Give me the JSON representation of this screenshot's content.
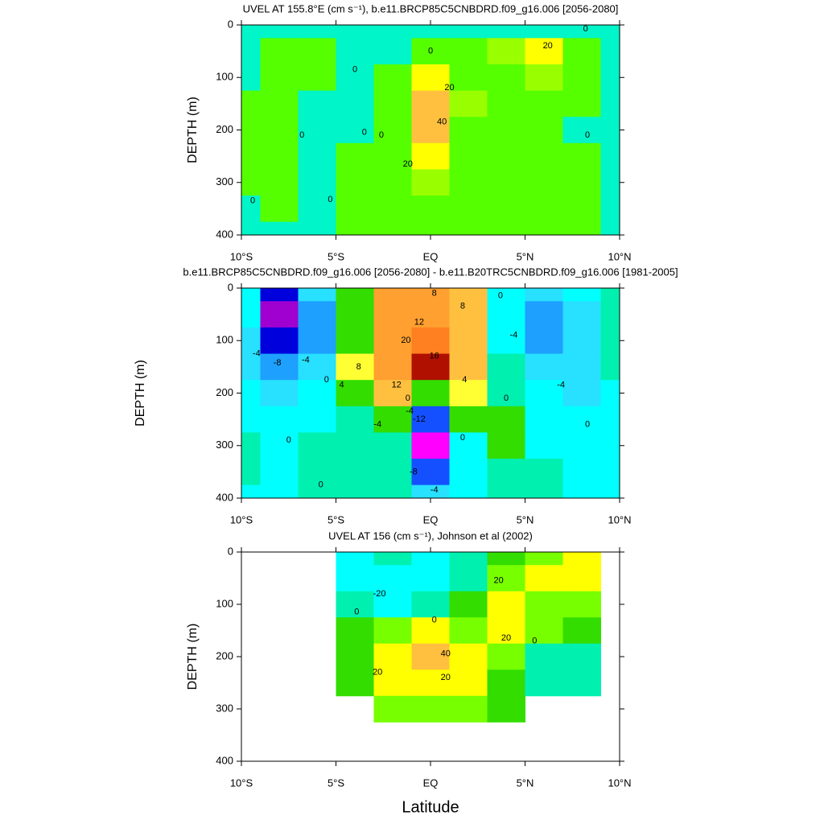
{
  "chart_data": [
    {
      "type": "contour",
      "title": "UVEL AT 155.8°E (cm s⁻¹), b.e11.BRCP85C5CNBDRD.f09_g16.006 [2056-2080]",
      "ylabel": "DEPTH (m)",
      "xlim": [
        -10,
        10
      ],
      "xticks": [
        {
          "value": -10,
          "label": "10°S"
        },
        {
          "value": -5,
          "label": "5°S"
        },
        {
          "value": 0,
          "label": "EQ"
        },
        {
          "value": 5,
          "label": "5°N"
        },
        {
          "value": 10,
          "label": "10°N"
        }
      ],
      "ylim": [
        400,
        0
      ],
      "yticks": [
        0,
        100,
        200,
        300,
        400
      ],
      "x": [
        -10,
        -8,
        -6,
        -4,
        -2,
        0,
        2,
        4,
        6,
        8,
        10
      ],
      "y": [
        0,
        50,
        100,
        150,
        200,
        250,
        300,
        350,
        400
      ],
      "levels": [
        -5,
        0,
        10,
        20,
        30,
        40
      ],
      "colors": [
        "#00ffff",
        "#00f5c8",
        "#55ff00",
        "#99ff00",
        "#ffff00",
        "#ffc040",
        "#ff9020"
      ],
      "z": [
        [
          -3,
          -3,
          -3,
          -3,
          -3,
          -3,
          -3,
          -3,
          -3,
          -3,
          -3
        ],
        [
          -2,
          5,
          5,
          -2,
          -4,
          2,
          3,
          10,
          22,
          5,
          -3
        ],
        [
          -2,
          3,
          2,
          -3,
          0,
          20,
          8,
          8,
          15,
          3,
          -3
        ],
        [
          0,
          1,
          -1,
          -2,
          5,
          38,
          10,
          6,
          6,
          1,
          -3
        ],
        [
          2,
          3,
          -2,
          -2,
          8,
          35,
          8,
          3,
          2,
          -1,
          -3
        ],
        [
          3,
          3,
          -2,
          0,
          8,
          22,
          6,
          3,
          2,
          1,
          -3
        ],
        [
          2,
          2,
          -2,
          2,
          6,
          10,
          4,
          3,
          2,
          1,
          -2
        ],
        [
          -2,
          2,
          -2,
          2,
          4,
          5,
          3,
          2,
          2,
          1,
          -2
        ],
        [
          -2,
          -2,
          -2,
          3,
          3,
          3,
          3,
          2,
          2,
          1,
          -2
        ]
      ],
      "contour_labels": [
        {
          "level": 20,
          "lat": 6.2,
          "depth": 40
        },
        {
          "level": 0,
          "lat": 8.2,
          "depth": 8
        },
        {
          "level": 0,
          "lat": 0,
          "depth": 50
        },
        {
          "level": 0,
          "lat": -4,
          "depth": 85
        },
        {
          "level": 20,
          "lat": 1,
          "depth": 120
        },
        {
          "level": 40,
          "lat": 0.6,
          "depth": 185
        },
        {
          "level": 20,
          "lat": -1.2,
          "depth": 265
        },
        {
          "level": 0,
          "lat": -2.6,
          "depth": 210
        },
        {
          "level": 0,
          "lat": -6.8,
          "depth": 210
        },
        {
          "level": 0,
          "lat": -3.5,
          "depth": 205
        },
        {
          "level": 0,
          "lat": 8.3,
          "depth": 210
        },
        {
          "level": 0,
          "lat": -9.4,
          "depth": 335
        },
        {
          "level": 0,
          "lat": -5.3,
          "depth": 333
        }
      ]
    },
    {
      "type": "contour",
      "title": "b.e11.BRCP85C5CNBDRD.f09_g16.006 [2056-2080] - b.e11.B20TRC5CNBDRD.f09_g16.006 [1981-2005]",
      "ylabel": "DEPTH (m)",
      "xlim": [
        -10,
        10
      ],
      "xticks": [
        {
          "value": -10,
          "label": "10°S"
        },
        {
          "value": -5,
          "label": "5°S"
        },
        {
          "value": 0,
          "label": "EQ"
        },
        {
          "value": 5,
          "label": "5°N"
        },
        {
          "value": 10,
          "label": "10°N"
        }
      ],
      "ylim": [
        400,
        0
      ],
      "yticks": [
        0,
        100,
        200,
        300,
        400
      ],
      "x": [
        -10,
        -8,
        -6,
        -4,
        -2,
        0,
        2,
        4,
        6,
        8,
        10
      ],
      "y": [
        0,
        50,
        100,
        150,
        200,
        250,
        300,
        350,
        400
      ],
      "levels": [
        -14,
        -12,
        -10,
        -8,
        -6,
        -4,
        -2,
        0,
        2,
        4,
        6,
        8,
        12,
        16,
        20
      ],
      "colors": [
        "#dddddd",
        "#ff00ff",
        "#a000d0",
        "#0000dd",
        "#1450ff",
        "#1ea0ff",
        "#28e0ff",
        "#00ffff",
        "#00f0b0",
        "#33dd00",
        "#ffff33",
        "#ffc040",
        "#ffa030",
        "#ff8020",
        "#e03000",
        "#b01000"
      ],
      "z": [
        [
          -2,
          -10,
          -4,
          2,
          8,
          8,
          6,
          -1,
          -4,
          -2,
          0
        ],
        [
          -2,
          -12,
          -6,
          2,
          10,
          10,
          6,
          -1,
          -5,
          -3,
          0
        ],
        [
          -3,
          -10,
          -6,
          2,
          10,
          14,
          6,
          -1,
          -6,
          -3,
          0
        ],
        [
          -3,
          -5,
          -4,
          4,
          10,
          20,
          6,
          0,
          -4,
          -3,
          0
        ],
        [
          -2,
          -3,
          -2,
          2,
          6,
          2,
          4,
          1,
          -2,
          -3,
          -1
        ],
        [
          -1,
          -2,
          -1,
          1,
          2,
          -8,
          2,
          2,
          -1,
          -2,
          -1
        ],
        [
          0,
          -1,
          0,
          1,
          0,
          -14,
          -2,
          2,
          -1,
          -2,
          -1
        ],
        [
          0,
          -1,
          0,
          1,
          0,
          -8,
          -2,
          1,
          0,
          -2,
          -1
        ],
        [
          -1,
          -1,
          0,
          1,
          0,
          -4,
          -2,
          0,
          0,
          -2,
          -1
        ]
      ],
      "contour_labels": [
        {
          "level": 8,
          "lat": 0.2,
          "depth": 10
        },
        {
          "level": 8,
          "lat": 1.7,
          "depth": 35
        },
        {
          "level": 0,
          "lat": 3.7,
          "depth": 15
        },
        {
          "level": 12,
          "lat": -0.6,
          "depth": 65
        },
        {
          "level": 20,
          "lat": -1.3,
          "depth": 100
        },
        {
          "level": 16,
          "lat": 0.2,
          "depth": 130
        },
        {
          "level": -4,
          "lat": 4.4,
          "depth": 90
        },
        {
          "level": -4,
          "lat": -9.2,
          "depth": 125
        },
        {
          "level": -8,
          "lat": -8.1,
          "depth": 143
        },
        {
          "level": -4,
          "lat": -6.6,
          "depth": 137
        },
        {
          "level": 8,
          "lat": -3.8,
          "depth": 150
        },
        {
          "level": 4,
          "lat": -4.7,
          "depth": 185
        },
        {
          "level": 0,
          "lat": -5.5,
          "depth": 175
        },
        {
          "level": 12,
          "lat": -1.8,
          "depth": 185
        },
        {
          "level": 4,
          "lat": 1.8,
          "depth": 175
        },
        {
          "level": 0,
          "lat": -1.2,
          "depth": 210
        },
        {
          "level": -4,
          "lat": -1.1,
          "depth": 235
        },
        {
          "level": -12,
          "lat": -0.6,
          "depth": 250
        },
        {
          "level": 0,
          "lat": 4,
          "depth": 210
        },
        {
          "level": -4,
          "lat": 6.9,
          "depth": 185
        },
        {
          "level": 0,
          "lat": 8.3,
          "depth": 260
        },
        {
          "level": -4,
          "lat": -2.8,
          "depth": 260
        },
        {
          "level": 0,
          "lat": -7.5,
          "depth": 290
        },
        {
          "level": 0,
          "lat": 1.7,
          "depth": 285
        },
        {
          "level": -8,
          "lat": -0.9,
          "depth": 350
        },
        {
          "level": -4,
          "lat": 0.2,
          "depth": 385
        },
        {
          "level": 0,
          "lat": -5.8,
          "depth": 375
        }
      ]
    },
    {
      "type": "contour",
      "title": "UVEL AT 156 (cm s⁻¹), Johnson et al (2002)",
      "ylabel": "DEPTH (m)",
      "xlabel": "Latitude",
      "xlim": [
        -10,
        10
      ],
      "xticks": [
        {
          "value": -10,
          "label": "10°S"
        },
        {
          "value": -5,
          "label": "5°S"
        },
        {
          "value": 0,
          "label": "EQ"
        },
        {
          "value": 5,
          "label": "5°N"
        },
        {
          "value": 10,
          "label": "10°N"
        }
      ],
      "ylim": [
        400,
        0
      ],
      "yticks": [
        0,
        100,
        200,
        300,
        400
      ],
      "x": [
        -10,
        -8,
        -6,
        -4,
        -2,
        0,
        2,
        4,
        6,
        8,
        10
      ],
      "y": [
        0,
        50,
        100,
        150,
        200,
        250,
        300,
        350,
        400
      ],
      "levels": [
        -20,
        -10,
        0,
        10,
        20,
        30,
        40
      ],
      "colors": [
        "#30c8ff",
        "#00ffff",
        "#00f0b0",
        "#33dd00",
        "#77ff00",
        "#ffff00",
        "#ffc040",
        "#ff9020"
      ],
      "z": [
        [
          null,
          null,
          null,
          -15,
          -10,
          -15,
          -5,
          5,
          15,
          20,
          null
        ],
        [
          null,
          null,
          null,
          -15,
          -15,
          -20,
          -5,
          10,
          20,
          25,
          null
        ],
        [
          null,
          null,
          null,
          -5,
          -15,
          -5,
          0,
          20,
          15,
          10,
          null
        ],
        [
          null,
          null,
          null,
          0,
          10,
          20,
          15,
          20,
          10,
          0,
          null
        ],
        [
          null,
          null,
          null,
          5,
          25,
          35,
          20,
          10,
          -5,
          -5,
          null
        ],
        [
          null,
          null,
          null,
          5,
          20,
          25,
          20,
          5,
          -5,
          -5,
          null
        ],
        [
          null,
          null,
          null,
          null,
          10,
          10,
          10,
          5,
          null,
          null,
          null
        ],
        [
          null,
          null,
          null,
          null,
          null,
          null,
          null,
          null,
          null,
          null,
          null
        ],
        [
          null,
          null,
          null,
          null,
          null,
          null,
          null,
          null,
          null,
          null,
          null
        ]
      ],
      "contour_labels": [
        {
          "level": -20,
          "lat": -2.7,
          "depth": 80
        },
        {
          "level": 0,
          "lat": -3.9,
          "depth": 115
        },
        {
          "level": 0,
          "lat": 0.2,
          "depth": 130
        },
        {
          "level": 20,
          "lat": 3.6,
          "depth": 55
        },
        {
          "level": 20,
          "lat": 4,
          "depth": 165
        },
        {
          "level": 0,
          "lat": 5.5,
          "depth": 170
        },
        {
          "level": 40,
          "lat": 0.8,
          "depth": 195
        },
        {
          "level": 20,
          "lat": -2.8,
          "depth": 230
        },
        {
          "level": 20,
          "lat": 0.8,
          "depth": 240
        }
      ]
    }
  ]
}
